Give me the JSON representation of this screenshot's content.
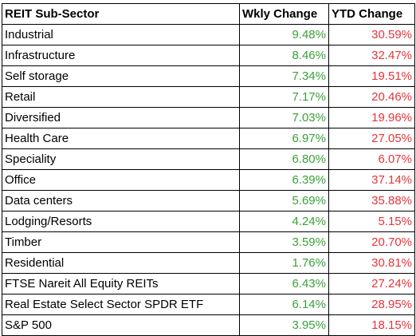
{
  "table": {
    "headers": [
      "REIT Sub-Sector",
      "Wkly Change",
      "YTD Change"
    ],
    "rows": [
      {
        "sector": "Industrial",
        "wkly": "9.48%",
        "ytd": "30.59%"
      },
      {
        "sector": "Infrastructure",
        "wkly": "8.46%",
        "ytd": "32.47%"
      },
      {
        "sector": "Self storage",
        "wkly": "7.34%",
        "ytd": "19.51%"
      },
      {
        "sector": "Retail",
        "wkly": "7.17%",
        "ytd": "20.46%"
      },
      {
        "sector": "Diversified",
        "wkly": "7.03%",
        "ytd": "19.96%"
      },
      {
        "sector": "Health Care",
        "wkly": "6.97%",
        "ytd": "27.05%"
      },
      {
        "sector": "Speciality",
        "wkly": "6.80%",
        "ytd": "6.07%"
      },
      {
        "sector": "Office",
        "wkly": "6.39%",
        "ytd": "37.14%"
      },
      {
        "sector": "Data centers",
        "wkly": "5.69%",
        "ytd": "35.88%"
      },
      {
        "sector": "Lodging/Resorts",
        "wkly": "4.24%",
        "ytd": "5.15%"
      },
      {
        "sector": "Timber",
        "wkly": "3.59%",
        "ytd": "20.70%"
      },
      {
        "sector": "Residential",
        "wkly": "1.76%",
        "ytd": "30.81%"
      },
      {
        "sector": "FTSE Nareit All Equity REITs",
        "wkly": "6.43%",
        "ytd": "27.24%"
      },
      {
        "sector": "Real Estate Select Sector SPDR ETF",
        "wkly": "6.14%",
        "ytd": "28.95%"
      },
      {
        "sector": "S&P 500",
        "wkly": "3.95%",
        "ytd": "18.15%"
      }
    ]
  },
  "colors": {
    "wkly_change": "#3aa13a",
    "ytd_change": "#e8343a"
  }
}
